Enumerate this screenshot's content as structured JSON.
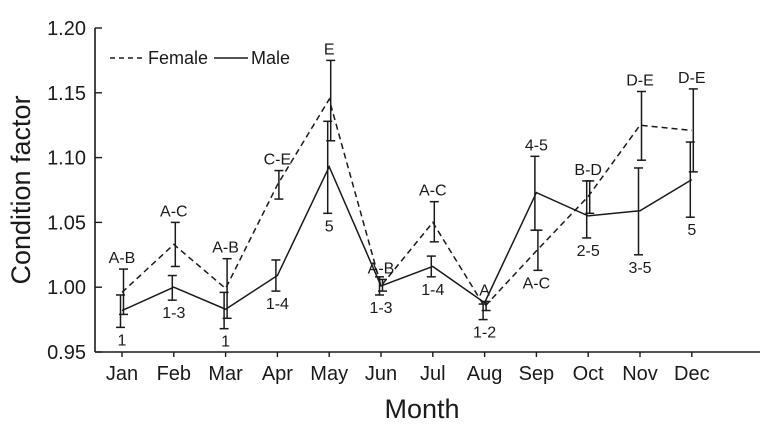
{
  "chart_data": {
    "type": "line",
    "title": "",
    "xlabel": "Month",
    "ylabel": "Condition factor",
    "ylim": [
      0.95,
      1.2
    ],
    "yticks": [
      "0.95",
      "1.00",
      "1.05",
      "1.10",
      "1.15",
      "1.20"
    ],
    "categories": [
      "Jan",
      "Feb",
      "Mar",
      "Apr",
      "May",
      "Jun",
      "Jul",
      "Aug",
      "Sep",
      "Oct",
      "Nov",
      "Dec"
    ],
    "legend_position": "top-left",
    "series": [
      {
        "name": "Female",
        "style": "dashed",
        "values": [
          0.996,
          1.033,
          0.999,
          1.079,
          1.145,
          1.001,
          1.05,
          0.985,
          1.028,
          1.07,
          1.125,
          1.121
        ],
        "err_low": [
          0.979,
          1.016,
          0.976,
          1.068,
          1.113,
          0.997,
          1.035,
          0.982,
          1.013,
          1.057,
          1.098,
          1.089
        ],
        "err_high": [
          1.014,
          1.05,
          1.022,
          1.09,
          1.175,
          1.006,
          1.066,
          0.989,
          1.044,
          1.082,
          1.151,
          1.153
        ],
        "labels": [
          "A-B",
          "A-C",
          "A-B",
          "C-E",
          "E",
          "A-B",
          "A-C",
          "A",
          "A-C",
          "B-D",
          "D-E",
          "D-E"
        ],
        "label_pos": [
          "above",
          "above",
          "above",
          "above",
          "above",
          "above",
          "above",
          "above",
          "below",
          "above",
          "above",
          "above"
        ]
      },
      {
        "name": "Male",
        "style": "solid",
        "values": [
          0.982,
          1.0,
          0.983,
          1.009,
          1.093,
          1.001,
          1.016,
          0.988,
          1.073,
          1.055,
          1.059,
          1.083
        ],
        "err_low": [
          0.969,
          0.99,
          0.968,
          0.997,
          1.057,
          0.994,
          1.008,
          0.975,
          1.044,
          1.038,
          1.025,
          1.054
        ],
        "err_high": [
          0.994,
          1.009,
          0.996,
          1.021,
          1.128,
          1.008,
          1.024,
          0.987,
          1.101,
          1.082,
          1.092,
          1.112
        ],
        "labels": [
          "1",
          "1-3",
          "1",
          "1-4",
          "5",
          "1-3",
          "1-4",
          "1-2",
          "4-5",
          "2-5",
          "3-5",
          "5"
        ],
        "label_pos": [
          "below",
          "below",
          "below",
          "below",
          "below",
          "below",
          "below",
          "below",
          "above",
          "below",
          "below",
          "below"
        ]
      }
    ]
  }
}
